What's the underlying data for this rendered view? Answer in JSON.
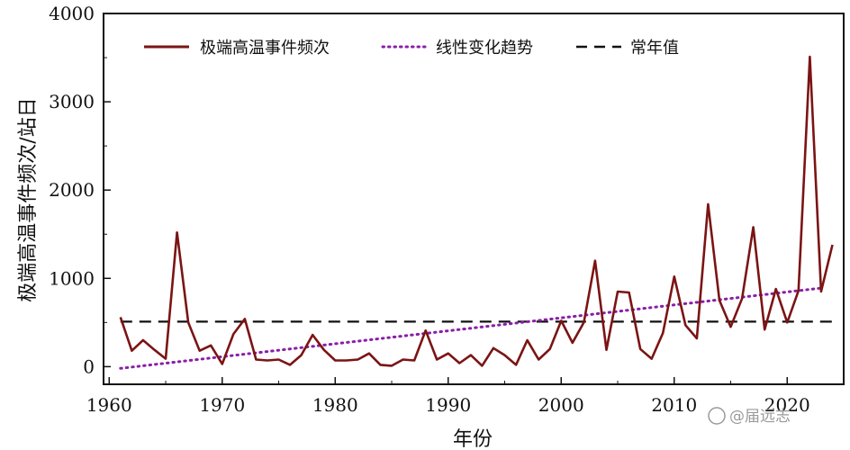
{
  "chart_data": {
    "type": "line",
    "xlabel": "年份",
    "ylabel": "极端高温事件频次/站日",
    "xlim": [
      1959.5,
      2025
    ],
    "ylim": [
      -200,
      4000
    ],
    "xticks": [
      1960,
      1970,
      1980,
      1990,
      2000,
      2010,
      2020
    ],
    "yticks": [
      0,
      1000,
      2000,
      3000,
      4000
    ],
    "grid": false,
    "legend_position": "top",
    "series": [
      {
        "name": "极端高温事件频次",
        "style": "solid",
        "color": "#7b1414",
        "x": [
          1961,
          1962,
          1963,
          1964,
          1965,
          1966,
          1967,
          1968,
          1969,
          1970,
          1971,
          1972,
          1973,
          1974,
          1975,
          1976,
          1977,
          1978,
          1979,
          1980,
          1981,
          1982,
          1983,
          1984,
          1985,
          1986,
          1987,
          1988,
          1989,
          1990,
          1991,
          1992,
          1993,
          1994,
          1995,
          1996,
          1997,
          1998,
          1999,
          2000,
          2001,
          2002,
          2003,
          2004,
          2005,
          2006,
          2007,
          2008,
          2009,
          2010,
          2011,
          2012,
          2013,
          2014,
          2015,
          2016,
          2017,
          2018,
          2019,
          2020,
          2021,
          2022,
          2023,
          2024
        ],
        "y": [
          560,
          180,
          300,
          190,
          90,
          1520,
          500,
          180,
          240,
          30,
          370,
          540,
          80,
          70,
          80,
          20,
          130,
          360,
          190,
          70,
          70,
          80,
          150,
          20,
          10,
          80,
          70,
          410,
          80,
          150,
          40,
          130,
          10,
          210,
          130,
          20,
          300,
          80,
          200,
          520,
          270,
          500,
          1200,
          190,
          850,
          840,
          200,
          90,
          380,
          1020,
          470,
          320,
          1840,
          750,
          450,
          770,
          1580,
          420,
          880,
          500,
          860,
          3510,
          850,
          1380
        ]
      },
      {
        "name": "线性变化趋势",
        "style": "dotted",
        "color": "#8a1fa8",
        "x": [
          1961,
          2023
        ],
        "y": [
          -20,
          890
        ]
      },
      {
        "name": "常年值",
        "style": "dashed",
        "color": "#111111",
        "x": [
          1961,
          2024
        ],
        "y": [
          510,
          510
        ]
      }
    ]
  },
  "watermark": {
    "text": "@届远志"
  }
}
